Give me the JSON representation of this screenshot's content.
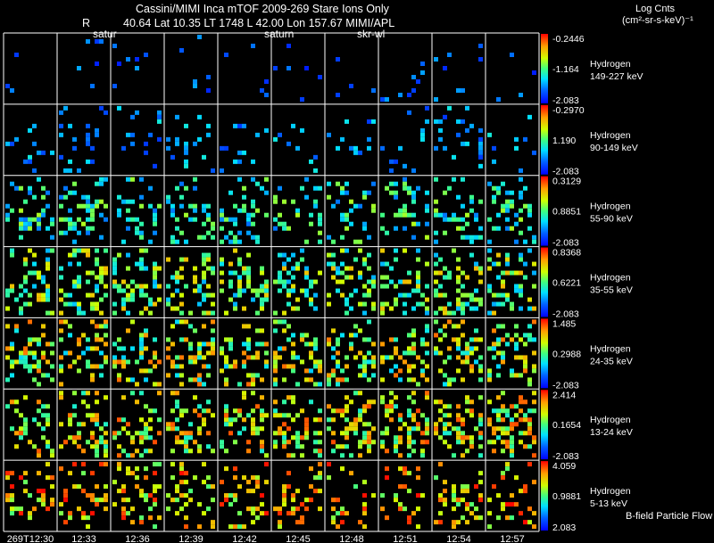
{
  "header": {
    "title": "Cassini/MIMI Inca mTOF  2009-269   Stare    Ions Only",
    "r_label": "R",
    "coords": "40.64 Lat 10.35 LT 1748 L       42.00 Lon       157.67  MIMI/APL",
    "tags": [
      "satur",
      "saturn",
      "skr-wl"
    ]
  },
  "units": {
    "line1": "Log Cnts",
    "line2": "(cm²-sr-s-keV)⁻¹"
  },
  "footer_note": "B-field Particle Flow",
  "colors": {
    "background": "#000000",
    "grid": "#ffffff"
  },
  "chart_data": {
    "type": "heatmap",
    "title": "Cassini/MIMI Inca mTOF 2009-269 Stare Ions Only",
    "x_tick_labels": [
      "269T12:30",
      "12:33",
      "12:36",
      "12:39",
      "12:42",
      "12:45",
      "12:48",
      "12:51",
      "12:54",
      "12:57"
    ],
    "panels": [
      {
        "species": "Hydrogen",
        "energy": "149-227 keV",
        "cmax": "-0.2446",
        "cmid": "-1.164",
        "cmin": "-2.083",
        "density": 0.05,
        "level": [
          0.05,
          0.28
        ]
      },
      {
        "species": "Hydrogen",
        "energy": "90-149 keV",
        "cmax": "-0.2970",
        "cmid": "1.190",
        "cmin": "-2.083",
        "density": 0.14,
        "level": [
          0.1,
          0.4
        ]
      },
      {
        "species": "Hydrogen",
        "energy": "55-90 keV",
        "cmax": "0.3129",
        "cmid": "0.8851",
        "cmin": "-2.083",
        "density": 0.3,
        "level": [
          0.2,
          0.62
        ]
      },
      {
        "species": "Hydrogen",
        "energy": "35-55 keV",
        "cmax": "0.8368",
        "cmid": "0.6221",
        "cmin": "-2.083",
        "density": 0.4,
        "level": [
          0.28,
          0.78
        ]
      },
      {
        "species": "Hydrogen",
        "energy": "24-35 keV",
        "cmax": "1.485",
        "cmid": "0.2988",
        "cmin": "-2.083",
        "density": 0.38,
        "level": [
          0.32,
          0.88
        ]
      },
      {
        "species": "Hydrogen",
        "energy": "13-24 keV",
        "cmax": "2.414",
        "cmid": "0.1654",
        "cmin": "-2.083",
        "density": 0.4,
        "level": [
          0.4,
          0.92
        ]
      },
      {
        "species": "Hydrogen",
        "energy": "5-13 keV",
        "cmax": "4.059",
        "cmid": "0.9881",
        "cmin": "2.083",
        "density": 0.3,
        "level": [
          0.5,
          1.0
        ]
      }
    ]
  }
}
